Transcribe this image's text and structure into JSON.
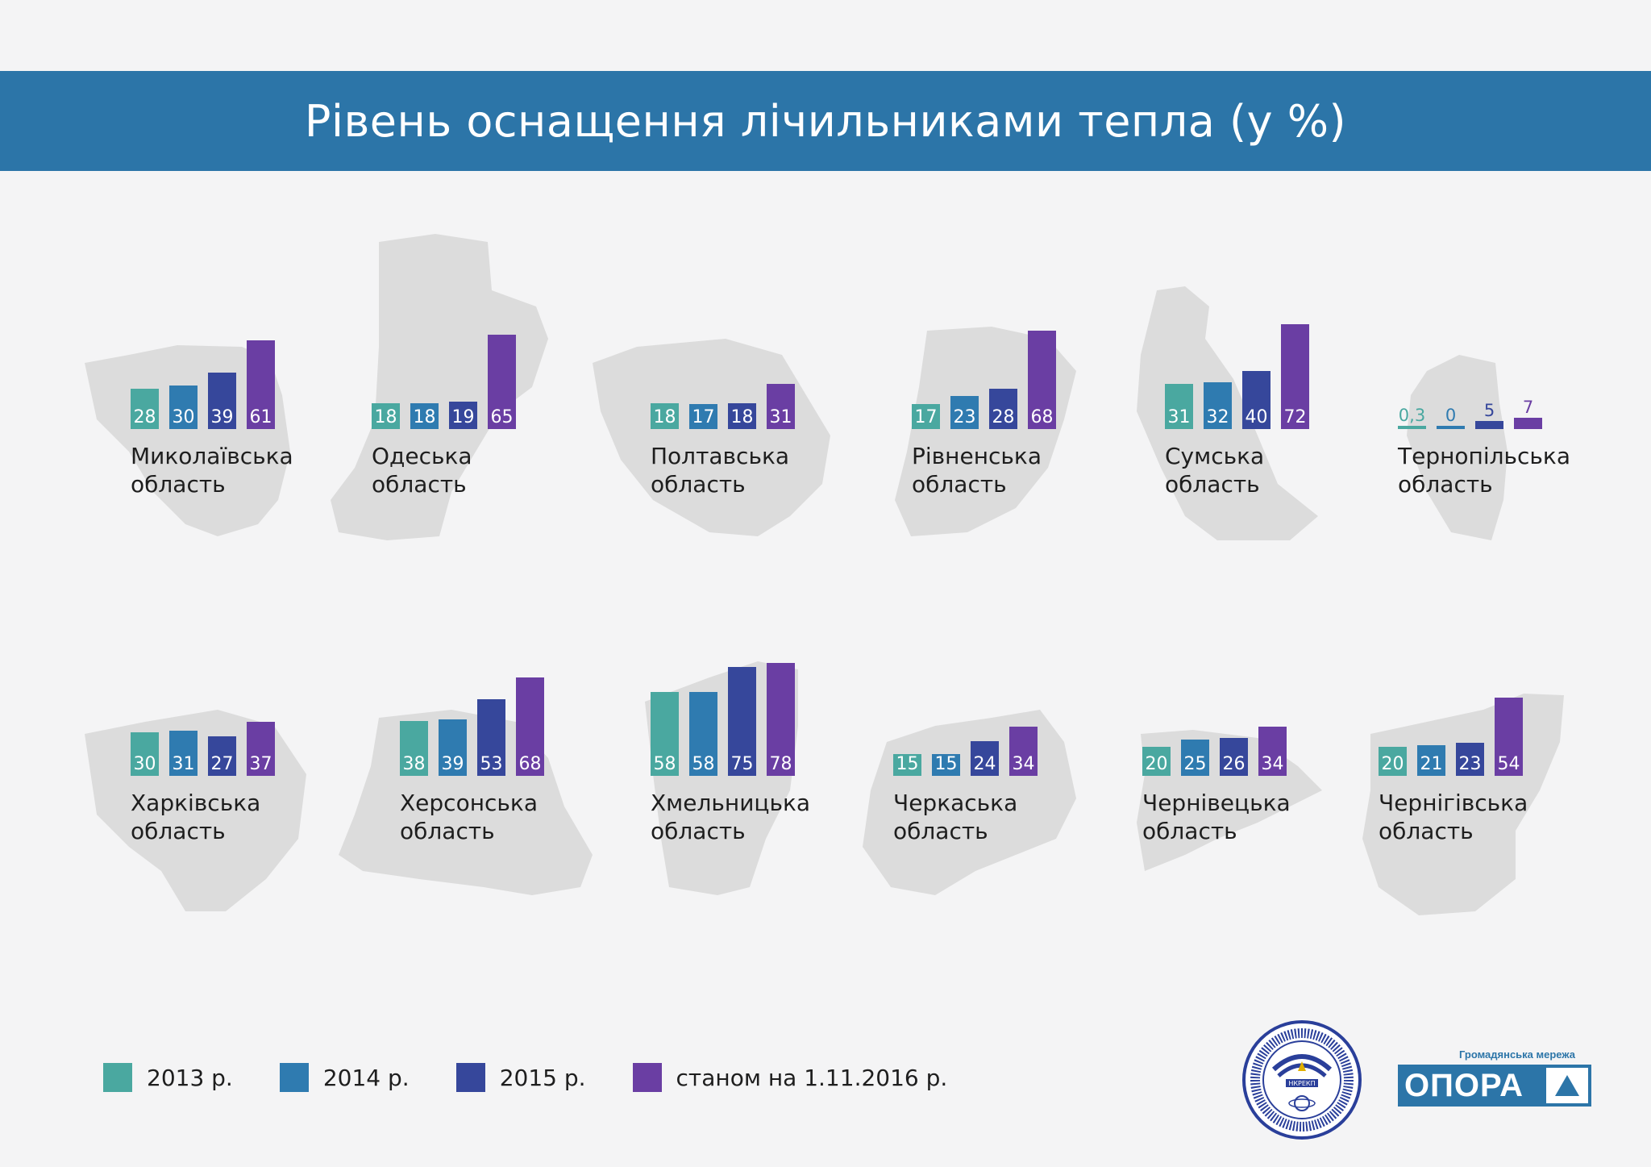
{
  "header": {
    "title": "Рівень оснащення лічильниками тепла (у %)"
  },
  "colors": {
    "y2013": "#4aa8a0",
    "y2014": "#2f7bb0",
    "y2015": "#36479b",
    "y2016": "#6a3ea3",
    "map": "#dcdcdc",
    "banner": "#2c75a8"
  },
  "legend": [
    {
      "label": "2013 р.",
      "color": "#4aa8a0"
    },
    {
      "label": "2014 р.",
      "color": "#2f7bb0"
    },
    {
      "label": "2015 р.",
      "color": "#36479b"
    },
    {
      "label": "станом на 1.11.2016 р.",
      "color": "#6a3ea3"
    }
  ],
  "chart_data": {
    "type": "bar",
    "series_names": [
      "2013 р.",
      "2014 р.",
      "2015 р.",
      "станом на 1.11.2016 р."
    ],
    "regions": [
      {
        "name": [
          "Миколаївська",
          "область"
        ],
        "values": [
          28,
          30,
          39,
          61
        ],
        "labels": [
          "28",
          "30",
          "39",
          "61"
        ]
      },
      {
        "name": [
          "Одеська",
          "область"
        ],
        "values": [
          18,
          18,
          19,
          65
        ],
        "labels": [
          "18",
          "18",
          "19",
          "65"
        ]
      },
      {
        "name": [
          "Полтавська",
          "область"
        ],
        "values": [
          18,
          17,
          18,
          31
        ],
        "labels": [
          "18",
          "17",
          "18",
          "31"
        ]
      },
      {
        "name": [
          "Рівненська",
          "область"
        ],
        "values": [
          17,
          23,
          28,
          68
        ],
        "labels": [
          "17",
          "23",
          "28",
          "68"
        ]
      },
      {
        "name": [
          "Сумська",
          "область"
        ],
        "values": [
          31,
          32,
          40,
          72
        ],
        "labels": [
          "31",
          "32",
          "40",
          "72"
        ]
      },
      {
        "name": [
          "Тернопільська",
          "область"
        ],
        "values": [
          0.3,
          0,
          5,
          7
        ],
        "labels": [
          "0,3",
          "0",
          "5",
          "7"
        ]
      },
      {
        "name": [
          "Харківська",
          "область"
        ],
        "values": [
          30,
          31,
          27,
          37
        ],
        "labels": [
          "30",
          "31",
          "27",
          "37"
        ]
      },
      {
        "name": [
          "Херсонська",
          "область"
        ],
        "values": [
          38,
          39,
          53,
          68
        ],
        "labels": [
          "38",
          "39",
          "53",
          "68"
        ]
      },
      {
        "name": [
          "Хмельницька",
          "область"
        ],
        "values": [
          58,
          58,
          75,
          78
        ],
        "labels": [
          "58",
          "58",
          "75",
          "78"
        ]
      },
      {
        "name": [
          "Черкаська",
          "область"
        ],
        "values": [
          15,
          15,
          24,
          34
        ],
        "labels": [
          "15",
          "15",
          "24",
          "34"
        ]
      },
      {
        "name": [
          "Чернівецька",
          "область"
        ],
        "values": [
          20,
          25,
          26,
          34
        ],
        "labels": [
          "20",
          "25",
          "26",
          "34"
        ]
      },
      {
        "name": [
          "Чернігівська",
          "область"
        ],
        "values": [
          20,
          21,
          23,
          54
        ],
        "labels": [
          "20",
          "21",
          "23",
          "54"
        ]
      }
    ]
  },
  "logos": {
    "seal_text": "НКРЕКП",
    "opora_subtitle": "Громадянська мережа",
    "opora_name": "ОПОРА"
  }
}
